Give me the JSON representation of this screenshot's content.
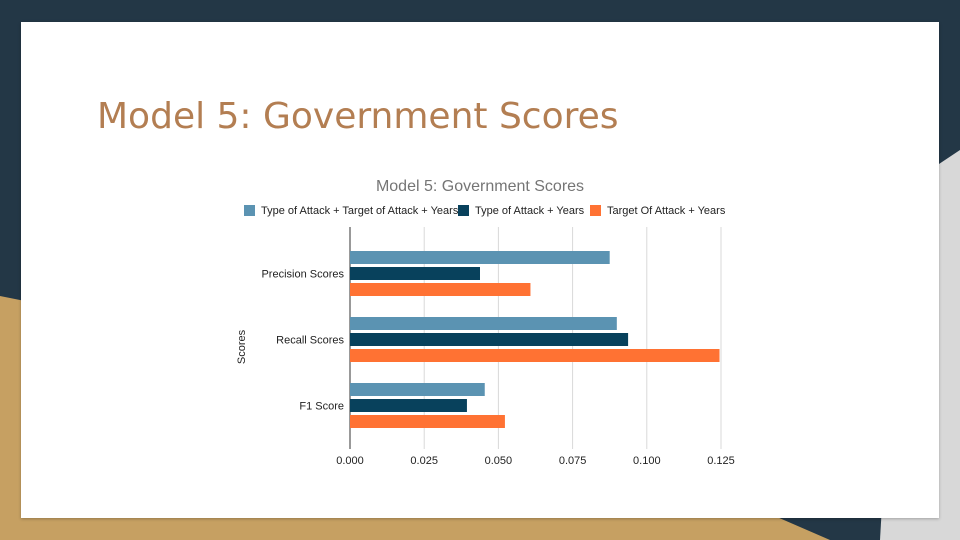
{
  "theme": {
    "navy": "#233746",
    "gold": "#c6a062",
    "title_color": "#b37e52",
    "grid_color": "#d9d9d9",
    "axis_color": "#333333"
  },
  "slide": {
    "title": "Model 5: Government Scores"
  },
  "chart_data": {
    "type": "bar",
    "orientation": "horizontal",
    "title": "Model 5: Government Scores",
    "ylabel": "Scores",
    "xlabel": "",
    "categories": [
      "Precision Scores",
      "Recall Scores",
      "F1 Score"
    ],
    "series": [
      {
        "name": "Type of Attack + Target of Attack + Years",
        "color": "#5b93b2",
        "values": [
          0.0875,
          0.0899,
          0.0454
        ]
      },
      {
        "name": "Type of Attack + Years",
        "color": "#08415c",
        "values": [
          0.0438,
          0.0937,
          0.0394
        ]
      },
      {
        "name": "Target Of Attack + Years",
        "color": "#ff7233",
        "values": [
          0.0608,
          0.1245,
          0.0522
        ]
      }
    ],
    "xlim": [
      0,
      0.125
    ],
    "xticks": [
      "0.000",
      "0.025",
      "0.050",
      "0.075",
      "0.100",
      "0.125"
    ],
    "grid": true,
    "legend_position": "top"
  }
}
